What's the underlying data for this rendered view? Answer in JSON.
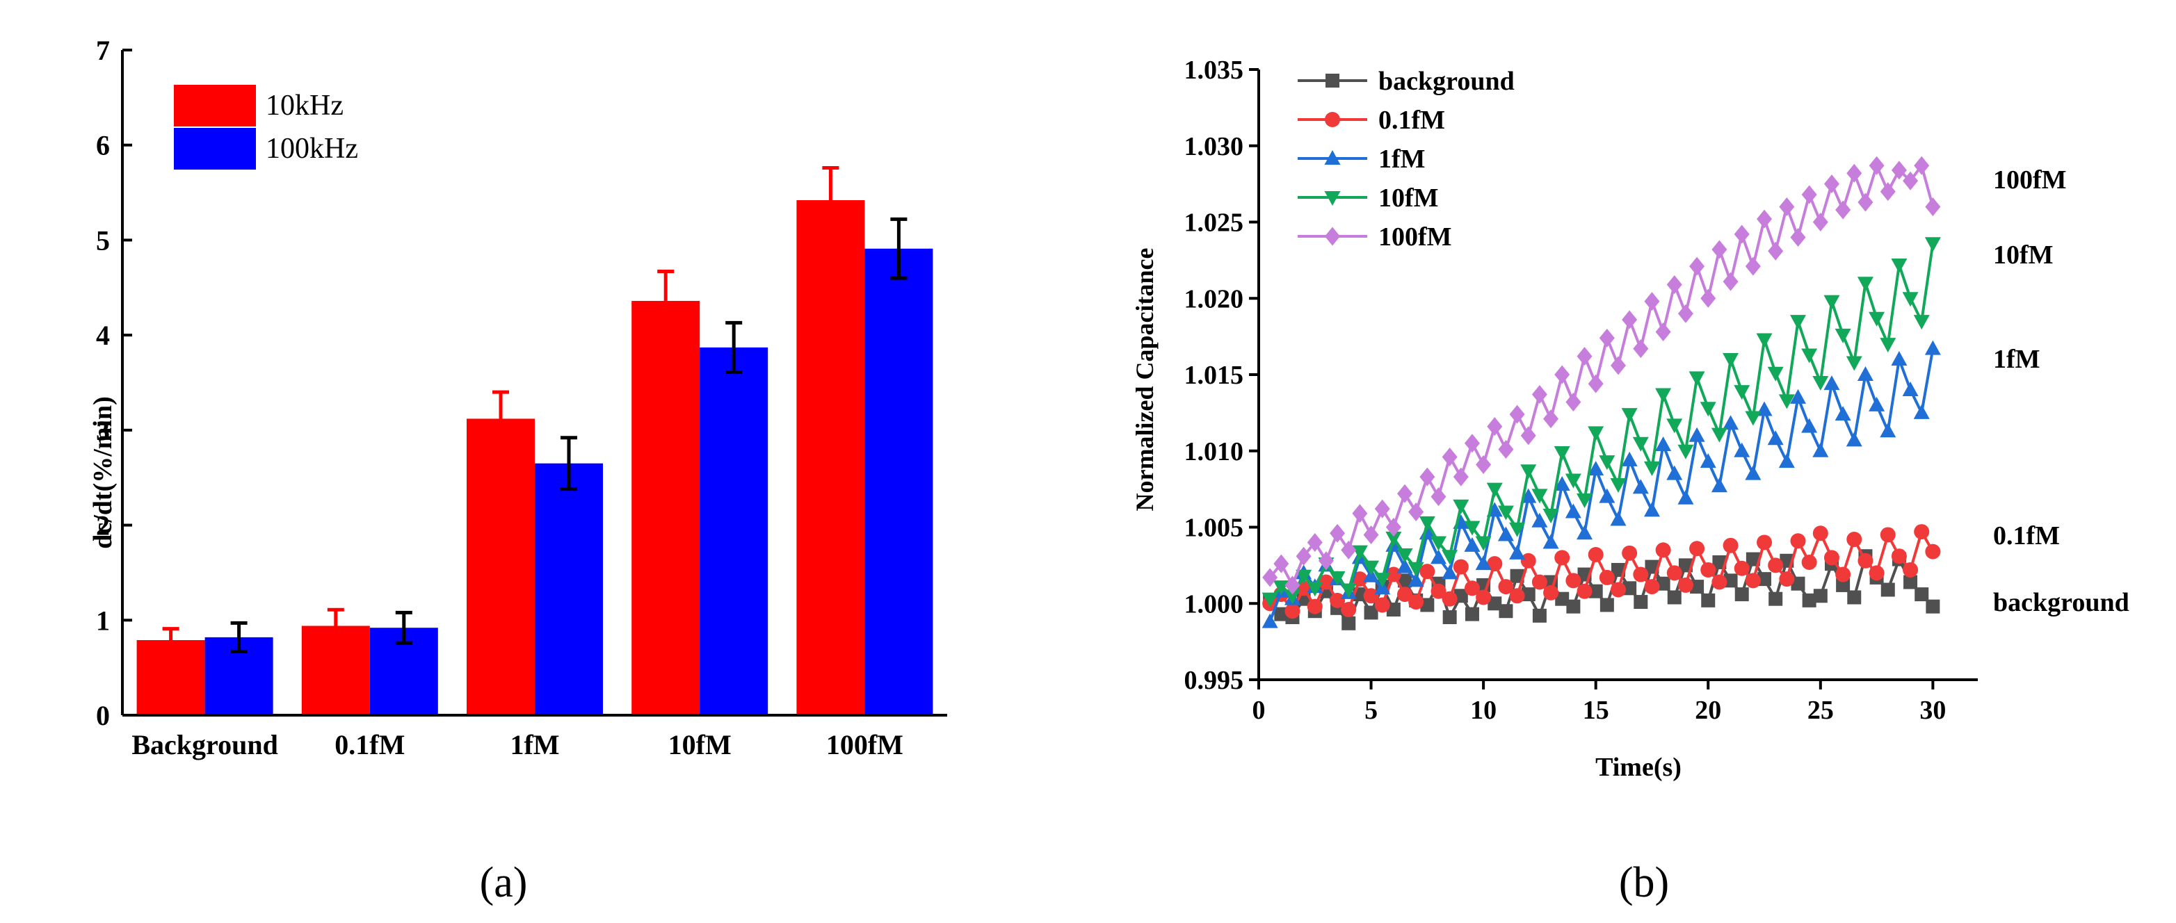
{
  "panels": {
    "a": {
      "label": "(a)"
    },
    "b": {
      "label": "(b)"
    }
  },
  "colors": {
    "background": "#505050",
    "0.1fM": "#f03a3a",
    "1fM": "#1f6fd6",
    "10fM": "#12a85a",
    "100fM": "#c77ddc",
    "10kHz": "#ff0000",
    "100kHz": "#0000ff"
  },
  "chart_data": [
    {
      "type": "bar",
      "title": "",
      "xlabel": "",
      "ylabel": "dc/dt(%/min)",
      "categories": [
        "Background",
        "0.1fM",
        "1fM",
        "10fM",
        "100fM"
      ],
      "ylim": [
        0,
        7
      ],
      "yticks": [
        0,
        1,
        2,
        3,
        4,
        5,
        6,
        7
      ],
      "legend_position": "top-left",
      "grid": false,
      "series": [
        {
          "name": "10kHz",
          "color": "#ff0000",
          "values": [
            0.79,
            0.94,
            3.12,
            4.36,
            5.42
          ],
          "errors": [
            0.12,
            0.17,
            0.28,
            0.31,
            0.34
          ],
          "error_direction": "up"
        },
        {
          "name": "100kHz",
          "color": "#0000ff",
          "values": [
            0.82,
            0.92,
            2.65,
            3.87,
            4.91
          ],
          "errors": [
            0.15,
            0.16,
            0.27,
            0.26,
            0.31
          ],
          "error_direction": "both"
        }
      ]
    },
    {
      "type": "line",
      "title": "",
      "xlabel": "Time(s)",
      "ylabel": "Normalized Capacitance",
      "xlim": [
        0,
        32
      ],
      "ylim": [
        0.995,
        1.035
      ],
      "xticks": [
        0,
        5,
        10,
        15,
        20,
        25,
        30
      ],
      "yticks": [
        "0.995",
        "1.000",
        "1.005",
        "1.010",
        "1.015",
        "1.020",
        "1.025",
        "1.030",
        "1.035"
      ],
      "legend_position": "top-left",
      "grid": false,
      "end_labels": [
        "100fM",
        "10fM",
        "1fM",
        "0.1fM",
        "background"
      ],
      "series": [
        {
          "name": "background",
          "marker": "square",
          "color": "#505050",
          "x": [
            0.5,
            1.0,
            1.5,
            2.0,
            2.5,
            3.0,
            3.5,
            4.0,
            4.5,
            5.0,
            5.5,
            6.0,
            6.5,
            7.0,
            7.5,
            8.0,
            8.5,
            9.0,
            9.5,
            10.0,
            10.5,
            11.0,
            11.5,
            12.0,
            12.5,
            13.0,
            13.5,
            14.0,
            14.5,
            15.0,
            15.5,
            16.0,
            16.5,
            17.0,
            17.5,
            18.0,
            18.5,
            19.0,
            19.5,
            20.0,
            20.5,
            21.0,
            21.5,
            22.0,
            22.5,
            23.0,
            23.5,
            24.0,
            24.5,
            25.0,
            25.5,
            26.0,
            26.5,
            27.0,
            27.5,
            28.0,
            28.5,
            29.0,
            29.5,
            30.0
          ],
          "y": [
            1.0002,
            0.9993,
            0.9991,
            1.0003,
            0.9995,
            1.0008,
            0.9997,
            0.9987,
            1.0006,
            0.9994,
            1.0011,
            0.9996,
            1.0015,
            1.0002,
            0.9999,
            1.0013,
            0.9991,
            1.0005,
            0.9993,
            1.0012,
            1.0,
            0.9995,
            1.0018,
            1.0006,
            0.9992,
            1.0014,
            1.0003,
            0.9998,
            1.0019,
            1.0008,
            0.9999,
            1.0022,
            1.001,
            1.0001,
            1.0024,
            1.0013,
            1.0004,
            1.0025,
            1.0011,
            1.0002,
            1.0027,
            1.0015,
            1.0006,
            1.0029,
            1.0016,
            1.0003,
            1.0028,
            1.0013,
            1.0002,
            1.0005,
            1.0026,
            1.0012,
            1.0004,
            1.0031,
            1.0017,
            1.0009,
            1.0029,
            1.0014,
            1.0006,
            0.9998
          ]
        },
        {
          "name": "0.1fM",
          "marker": "circle",
          "color": "#f03a3a",
          "x": [
            0.5,
            1.0,
            1.5,
            2.0,
            2.5,
            3.0,
            3.5,
            4.0,
            4.5,
            5.0,
            5.5,
            6.0,
            6.5,
            7.0,
            7.5,
            8.0,
            8.5,
            9.0,
            9.5,
            10.0,
            10.5,
            11.0,
            11.5,
            12.0,
            12.5,
            13.0,
            13.5,
            14.0,
            14.5,
            15.0,
            15.5,
            16.0,
            16.5,
            17.0,
            17.5,
            18.0,
            18.5,
            19.0,
            19.5,
            20.0,
            20.5,
            21.0,
            21.5,
            22.0,
            22.5,
            23.0,
            23.5,
            24.0,
            24.5,
            25.0,
            25.5,
            26.0,
            26.5,
            27.0,
            27.5,
            28.0,
            28.5,
            29.0,
            29.5,
            30.0
          ],
          "y": [
            1.0,
            1.0006,
            0.9995,
            1.001,
            0.9998,
            1.0014,
            1.0002,
            0.9996,
            1.0016,
            1.0005,
            0.9999,
            1.0019,
            1.0006,
            1.0001,
            1.0021,
            1.0008,
            1.0003,
            1.0024,
            1.001,
            1.0004,
            1.0026,
            1.0011,
            1.0005,
            1.0028,
            1.0014,
            1.0007,
            1.003,
            1.0015,
            1.0008,
            1.0032,
            1.0017,
            1.0009,
            1.0033,
            1.0019,
            1.0011,
            1.0035,
            1.002,
            1.0012,
            1.0036,
            1.0022,
            1.0014,
            1.0038,
            1.0023,
            1.0015,
            1.004,
            1.0025,
            1.0016,
            1.0041,
            1.0027,
            1.0046,
            1.003,
            1.0019,
            1.0042,
            1.0028,
            1.002,
            1.0045,
            1.0031,
            1.0022,
            1.0047,
            1.0034
          ]
        },
        {
          "name": "1fM",
          "marker": "triangle-up",
          "color": "#1f6fd6",
          "x": [
            0.5,
            1.0,
            1.5,
            2.0,
            2.5,
            3.0,
            3.5,
            4.0,
            4.5,
            5.0,
            5.5,
            6.0,
            6.5,
            7.0,
            7.5,
            8.0,
            8.5,
            9.0,
            9.5,
            10.0,
            10.5,
            11.0,
            11.5,
            12.0,
            12.5,
            13.0,
            13.5,
            14.0,
            14.5,
            15.0,
            15.5,
            16.0,
            16.5,
            17.0,
            17.5,
            18.0,
            18.5,
            19.0,
            19.5,
            20.0,
            20.5,
            21.0,
            21.5,
            22.0,
            22.5,
            23.0,
            23.5,
            24.0,
            24.5,
            25.0,
            25.5,
            26.0,
            26.5,
            27.0,
            27.5,
            28.0,
            28.5,
            29.0,
            29.5,
            30.0
          ],
          "y": [
            0.9988,
            1.0008,
            1.0003,
            1.002,
            1.0011,
            1.0025,
            1.0016,
            1.0007,
            1.003,
            1.0018,
            1.001,
            1.0038,
            1.0024,
            1.0015,
            1.0046,
            1.003,
            1.002,
            1.0053,
            1.0038,
            1.0026,
            1.0061,
            1.0045,
            1.0033,
            1.007,
            1.0054,
            1.004,
            1.0078,
            1.006,
            1.0046,
            1.0088,
            1.007,
            1.0055,
            1.0094,
            1.0076,
            1.0061,
            1.0104,
            1.0085,
            1.0069,
            1.011,
            1.0093,
            1.0077,
            1.0118,
            1.01,
            1.0085,
            1.0127,
            1.0108,
            1.0093,
            1.0135,
            1.0116,
            1.01,
            1.0144,
            1.0124,
            1.0107,
            1.015,
            1.013,
            1.0113,
            1.016,
            1.014,
            1.0125,
            1.0167
          ]
        },
        {
          "name": "10fM",
          "marker": "triangle-down",
          "color": "#12a85a",
          "x": [
            0.5,
            1.0,
            1.5,
            2.0,
            2.5,
            3.0,
            3.5,
            4.0,
            4.5,
            5.0,
            5.5,
            6.0,
            6.5,
            7.0,
            7.5,
            8.0,
            8.5,
            9.0,
            9.5,
            10.0,
            10.5,
            11.0,
            11.5,
            12.0,
            12.5,
            13.0,
            13.5,
            14.0,
            14.5,
            15.0,
            15.5,
            16.0,
            16.5,
            17.0,
            17.5,
            18.0,
            18.5,
            19.0,
            19.5,
            20.0,
            20.5,
            21.0,
            21.5,
            22.0,
            22.5,
            23.0,
            23.5,
            24.0,
            24.5,
            25.0,
            25.5,
            26.0,
            26.5,
            27.0,
            27.5,
            28.0,
            28.5,
            29.0,
            29.5,
            30.0
          ],
          "y": [
            1.0003,
            1.0011,
            1.0005,
            1.0018,
            1.001,
            1.0026,
            1.0017,
            1.0009,
            1.0034,
            1.0024,
            1.0016,
            1.0043,
            1.0032,
            1.0023,
            1.0053,
            1.004,
            1.0031,
            1.0064,
            1.005,
            1.004,
            1.0075,
            1.006,
            1.0049,
            1.0087,
            1.0071,
            1.0058,
            1.0099,
            1.0081,
            1.0068,
            1.0112,
            1.0093,
            1.0078,
            1.0124,
            1.0105,
            1.0089,
            1.0137,
            1.0117,
            1.01,
            1.0148,
            1.0128,
            1.0111,
            1.016,
            1.0139,
            1.0122,
            1.0173,
            1.0151,
            1.0133,
            1.0185,
            1.0163,
            1.0145,
            1.0198,
            1.0176,
            1.0158,
            1.021,
            1.0187,
            1.017,
            1.0222,
            1.02,
            1.0185,
            1.0236
          ]
        },
        {
          "name": "100fM",
          "marker": "diamond",
          "color": "#c77ddc",
          "x": [
            0.5,
            1.0,
            1.5,
            2.0,
            2.5,
            3.0,
            3.5,
            4.0,
            4.5,
            5.0,
            5.5,
            6.0,
            6.5,
            7.0,
            7.5,
            8.0,
            8.5,
            9.0,
            9.5,
            10.0,
            10.5,
            11.0,
            11.5,
            12.0,
            12.5,
            13.0,
            13.5,
            14.0,
            14.5,
            15.0,
            15.5,
            16.0,
            16.5,
            17.0,
            17.5,
            18.0,
            18.5,
            19.0,
            19.5,
            20.0,
            20.5,
            21.0,
            21.5,
            22.0,
            22.5,
            23.0,
            23.5,
            24.0,
            24.5,
            25.0,
            25.5,
            26.0,
            26.5,
            27.0,
            27.5,
            28.0,
            28.5,
            29.0,
            29.5,
            30.0
          ],
          "y": [
            1.0017,
            1.0026,
            1.0012,
            1.0031,
            1.004,
            1.0028,
            1.0046,
            1.0035,
            1.0059,
            1.0045,
            1.0062,
            1.005,
            1.0072,
            1.006,
            1.0083,
            1.007,
            1.0096,
            1.0083,
            1.0105,
            1.0091,
            1.0116,
            1.0101,
            1.0124,
            1.011,
            1.0137,
            1.0121,
            1.015,
            1.0132,
            1.0162,
            1.0144,
            1.0174,
            1.0156,
            1.0186,
            1.0167,
            1.0198,
            1.0178,
            1.0209,
            1.019,
            1.0221,
            1.02,
            1.0232,
            1.0211,
            1.0242,
            1.0221,
            1.0252,
            1.0231,
            1.026,
            1.024,
            1.0268,
            1.025,
            1.0275,
            1.0258,
            1.0282,
            1.0263,
            1.0287,
            1.027,
            1.0284,
            1.0277,
            1.0287,
            1.026
          ]
        }
      ]
    }
  ]
}
